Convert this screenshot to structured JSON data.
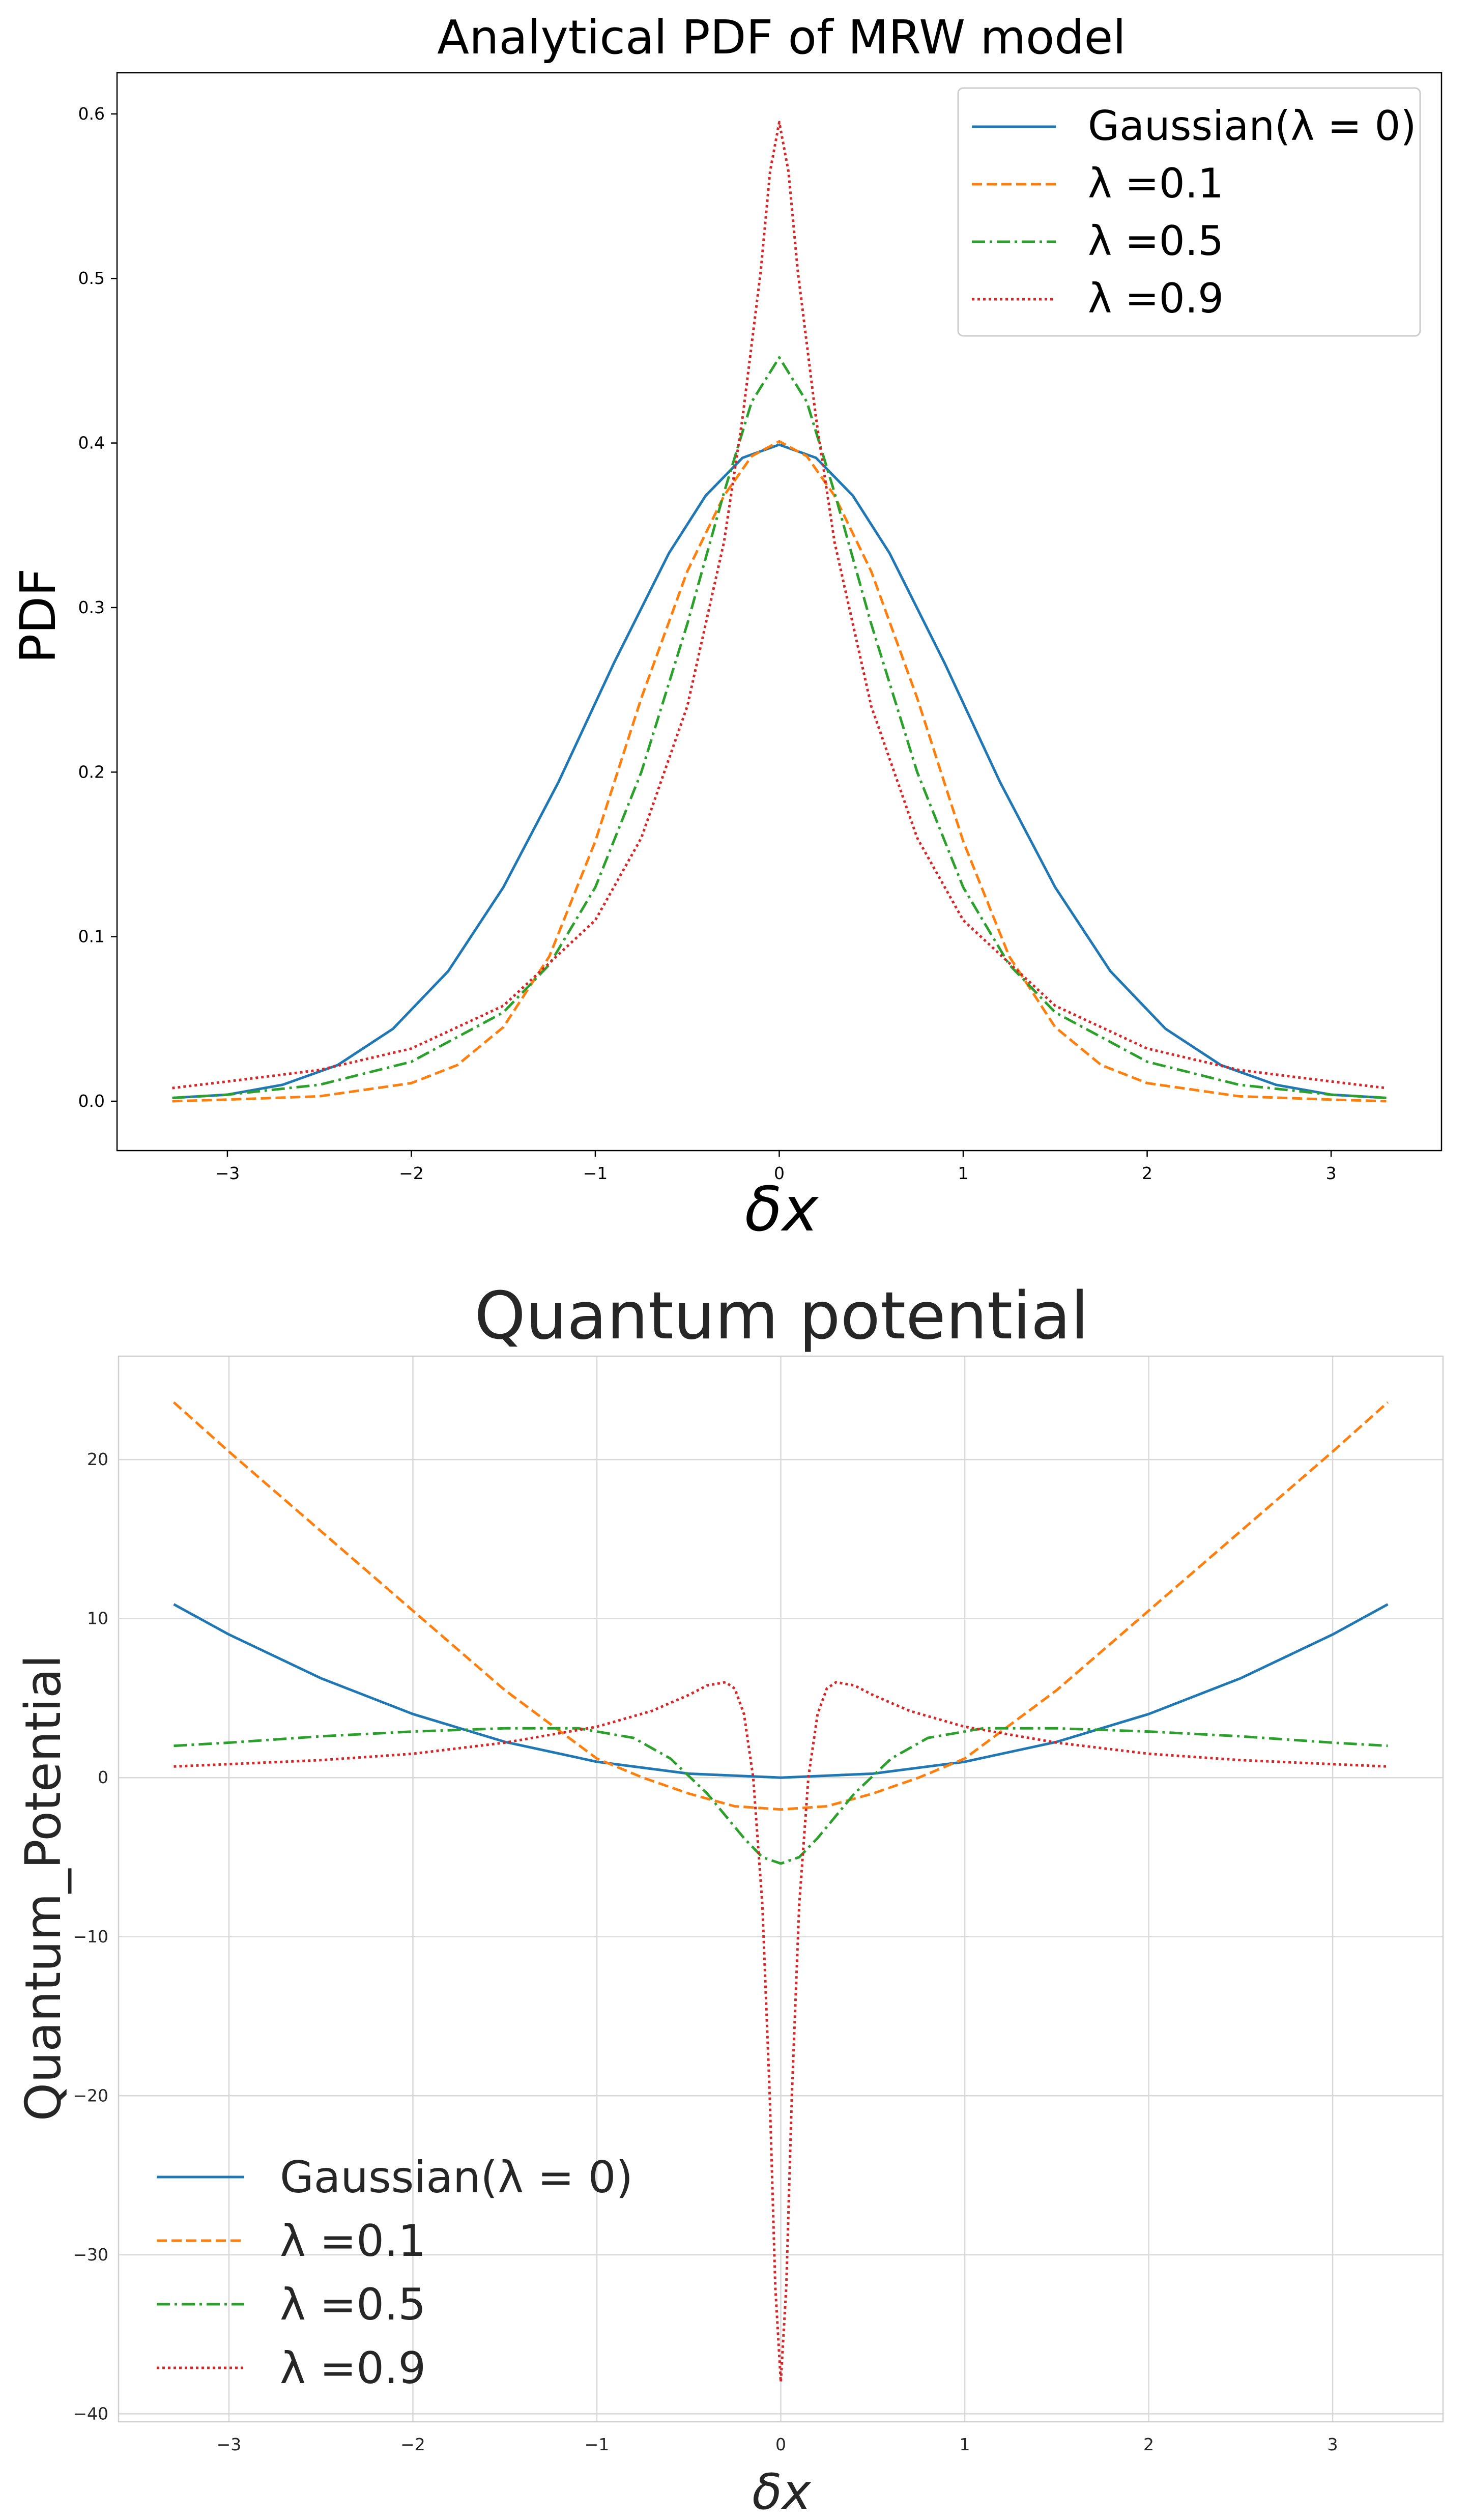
{
  "chart_data": [
    {
      "type": "line",
      "title": "Analytical PDF of MRW model",
      "xlabel": "δx",
      "ylabel": "PDF",
      "xlim": [
        -3.6,
        3.6
      ],
      "ylim": [
        -0.03,
        0.625
      ],
      "xticks": [
        -3,
        -2,
        -1,
        0,
        1,
        2,
        3
      ],
      "xtick_labels": [
        "−3",
        "−2",
        "−1",
        "0",
        "1",
        "2",
        "3"
      ],
      "yticks": [
        0.0,
        0.1,
        0.2,
        0.3,
        0.4,
        0.5,
        0.6
      ],
      "ytick_labels": [
        "0.0",
        "0.1",
        "0.2",
        "0.3",
        "0.4",
        "0.5",
        "0.6"
      ],
      "grid": false,
      "legend_position": "top-right",
      "series": [
        {
          "name": "Gaussian(λ = 0)",
          "color": "#1f77b4",
          "dash": "solid",
          "x": [
            -3.3,
            -3.0,
            -2.7,
            -2.4,
            -2.1,
            -1.8,
            -1.5,
            -1.2,
            -0.9,
            -0.6,
            -0.4,
            -0.2,
            0.0,
            0.2,
            0.4,
            0.6,
            0.9,
            1.2,
            1.5,
            1.8,
            2.1,
            2.4,
            2.7,
            3.0,
            3.3
          ],
          "y": [
            0.002,
            0.004,
            0.01,
            0.022,
            0.044,
            0.079,
            0.13,
            0.194,
            0.266,
            0.333,
            0.368,
            0.391,
            0.399,
            0.391,
            0.368,
            0.333,
            0.266,
            0.194,
            0.13,
            0.079,
            0.044,
            0.022,
            0.01,
            0.004,
            0.002
          ]
        },
        {
          "name": "λ =0.1",
          "color": "#ff7f0e",
          "dash": "dashed",
          "x": [
            -3.3,
            -3.0,
            -2.5,
            -2.0,
            -1.75,
            -1.5,
            -1.25,
            -1.0,
            -0.75,
            -0.5,
            -0.3,
            -0.15,
            0.0,
            0.15,
            0.3,
            0.5,
            0.75,
            1.0,
            1.25,
            1.5,
            1.75,
            2.0,
            2.5,
            3.0,
            3.3
          ],
          "y": [
            0.0,
            0.001,
            0.003,
            0.011,
            0.022,
            0.045,
            0.088,
            0.158,
            0.245,
            0.322,
            0.368,
            0.392,
            0.401,
            0.392,
            0.368,
            0.322,
            0.245,
            0.158,
            0.088,
            0.045,
            0.022,
            0.011,
            0.003,
            0.001,
            0.0
          ]
        },
        {
          "name": "λ =0.5",
          "color": "#2ca02c",
          "dash": "dashdot",
          "x": [
            -3.3,
            -3.0,
            -2.5,
            -2.0,
            -1.5,
            -1.25,
            -1.0,
            -0.75,
            -0.5,
            -0.3,
            -0.15,
            0.0,
            0.15,
            0.3,
            0.5,
            0.75,
            1.0,
            1.25,
            1.5,
            2.0,
            2.5,
            3.0,
            3.3
          ],
          "y": [
            0.002,
            0.004,
            0.01,
            0.024,
            0.054,
            0.083,
            0.13,
            0.2,
            0.29,
            0.37,
            0.425,
            0.452,
            0.425,
            0.37,
            0.29,
            0.2,
            0.13,
            0.083,
            0.054,
            0.024,
            0.01,
            0.004,
            0.002
          ]
        },
        {
          "name": "λ =0.9",
          "color": "#d62728",
          "dash": "dotted",
          "x": [
            -3.3,
            -3.0,
            -2.5,
            -2.0,
            -1.5,
            -1.0,
            -0.75,
            -0.5,
            -0.3,
            -0.2,
            -0.1,
            -0.05,
            0.0,
            0.05,
            0.1,
            0.2,
            0.3,
            0.5,
            0.75,
            1.0,
            1.5,
            2.0,
            2.5,
            3.0,
            3.3
          ],
          "y": [
            0.008,
            0.012,
            0.019,
            0.032,
            0.058,
            0.11,
            0.16,
            0.24,
            0.34,
            0.415,
            0.505,
            0.565,
            0.595,
            0.565,
            0.505,
            0.415,
            0.34,
            0.24,
            0.16,
            0.11,
            0.058,
            0.032,
            0.019,
            0.012,
            0.008
          ]
        }
      ]
    },
    {
      "type": "line",
      "title": "Quantum potential",
      "xlabel": "δx",
      "ylabel": "Quantum_Potential",
      "xlim": [
        -3.6,
        3.6
      ],
      "ylim": [
        -40.5,
        26.5
      ],
      "xticks": [
        -3,
        -2,
        -1,
        0,
        1,
        2,
        3
      ],
      "xtick_labels": [
        "−3",
        "−2",
        "−1",
        "0",
        "1",
        "2",
        "3"
      ],
      "yticks": [
        20,
        10,
        0,
        -10,
        -20,
        -30,
        -40
      ],
      "ytick_labels": [
        "20",
        "10",
        "0",
        "−10",
        "−20",
        "−30",
        "−40"
      ],
      "grid": true,
      "legend_position": "lower-left",
      "series": [
        {
          "name": "Gaussian(λ = 0)",
          "color": "#1f77b4",
          "dash": "solid",
          "x": [
            -3.3,
            -3.0,
            -2.5,
            -2.0,
            -1.5,
            -1.0,
            -0.5,
            0.0,
            0.5,
            1.0,
            1.5,
            2.0,
            2.5,
            3.0,
            3.3
          ],
          "y": [
            10.9,
            9.0,
            6.25,
            4.0,
            2.25,
            1.0,
            0.25,
            0.0,
            0.25,
            1.0,
            2.25,
            4.0,
            6.25,
            9.0,
            10.9
          ]
        },
        {
          "name": "λ =0.1",
          "color": "#ff7f0e",
          "dash": "dashed",
          "x": [
            -3.3,
            -3.0,
            -2.5,
            -2.0,
            -1.5,
            -1.0,
            -0.75,
            -0.5,
            -0.25,
            0.0,
            0.25,
            0.5,
            0.75,
            1.0,
            1.5,
            2.0,
            2.5,
            3.0,
            3.3
          ],
          "y": [
            23.6,
            20.5,
            15.5,
            10.5,
            5.5,
            1.2,
            0.0,
            -1.0,
            -1.8,
            -2.0,
            -1.8,
            -1.0,
            0.0,
            1.2,
            5.5,
            10.5,
            15.5,
            20.5,
            23.6
          ]
        },
        {
          "name": "λ =0.5",
          "color": "#2ca02c",
          "dash": "dashdot",
          "x": [
            -3.3,
            -3.0,
            -2.5,
            -2.0,
            -1.5,
            -1.1,
            -0.8,
            -0.6,
            -0.4,
            -0.2,
            -0.1,
            0.0,
            0.1,
            0.2,
            0.4,
            0.6,
            0.8,
            1.1,
            1.5,
            2.0,
            2.5,
            3.0,
            3.3
          ],
          "y": [
            2.0,
            2.2,
            2.6,
            2.9,
            3.1,
            3.1,
            2.5,
            1.2,
            -1.0,
            -3.8,
            -5.0,
            -5.4,
            -5.0,
            -3.8,
            -1.0,
            1.2,
            2.5,
            3.1,
            3.1,
            2.9,
            2.6,
            2.2,
            2.0
          ]
        },
        {
          "name": "λ =0.9",
          "color": "#d62728",
          "dash": "dotted",
          "x": [
            -3.3,
            -3.0,
            -2.5,
            -2.0,
            -1.5,
            -1.0,
            -0.7,
            -0.5,
            -0.4,
            -0.3,
            -0.25,
            -0.2,
            -0.15,
            -0.1,
            -0.06,
            -0.03,
            0.0,
            0.03,
            0.06,
            0.1,
            0.15,
            0.2,
            0.25,
            0.3,
            0.4,
            0.5,
            0.7,
            1.0,
            1.5,
            2.0,
            2.5,
            3.0,
            3.3
          ],
          "y": [
            0.7,
            0.85,
            1.1,
            1.5,
            2.2,
            3.2,
            4.2,
            5.2,
            5.8,
            6.0,
            5.6,
            4.0,
            0.0,
            -8.0,
            -20.0,
            -32.0,
            -38.0,
            -32.0,
            -20.0,
            -8.0,
            0.0,
            4.0,
            5.6,
            6.0,
            5.8,
            5.2,
            4.2,
            3.2,
            2.2,
            1.5,
            1.1,
            0.85,
            0.7
          ]
        }
      ]
    }
  ]
}
